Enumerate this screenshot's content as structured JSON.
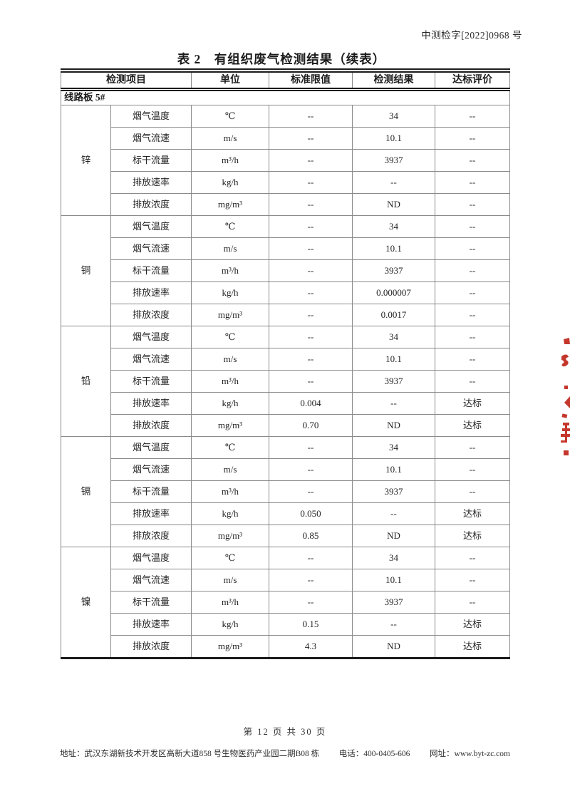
{
  "doc": {
    "number": "中测检字[2022]0968 号",
    "title": "表 2　有组织废气检测结果（续表）",
    "page_indicator": "第 12 页 共 30 页",
    "address": "地址：武汉东湖新技术开发区高新大道858 号生物医药产业园二期B08 栋",
    "phone": "电话：400-0405-606",
    "website": "网址：www.byt-zc.com"
  },
  "table": {
    "headers": [
      "检测项目",
      "单位",
      "标准限值",
      "检测结果",
      "达标评价"
    ],
    "section_label": "线路板 5#",
    "groups": [
      {
        "name": "锌",
        "rows": [
          {
            "item": "烟气温度",
            "unit": "℃",
            "standard_limit": "--",
            "result": "34",
            "evaluation": "--"
          },
          {
            "item": "烟气流速",
            "unit": "m/s",
            "standard_limit": "--",
            "result": "10.1",
            "evaluation": "--"
          },
          {
            "item": "标干流量",
            "unit": "m³/h",
            "standard_limit": "--",
            "result": "3937",
            "evaluation": "--"
          },
          {
            "item": "排放速率",
            "unit": "kg/h",
            "standard_limit": "--",
            "result": "--",
            "evaluation": "--"
          },
          {
            "item": "排放浓度",
            "unit": "mg/m³",
            "standard_limit": "--",
            "result": "ND",
            "evaluation": "--"
          }
        ]
      },
      {
        "name": "铜",
        "rows": [
          {
            "item": "烟气温度",
            "unit": "℃",
            "standard_limit": "--",
            "result": "34",
            "evaluation": "--"
          },
          {
            "item": "烟气流速",
            "unit": "m/s",
            "standard_limit": "--",
            "result": "10.1",
            "evaluation": "--"
          },
          {
            "item": "标干流量",
            "unit": "m³/h",
            "standard_limit": "--",
            "result": "3937",
            "evaluation": "--"
          },
          {
            "item": "排放速率",
            "unit": "kg/h",
            "standard_limit": "--",
            "result": "0.000007",
            "evaluation": "--"
          },
          {
            "item": "排放浓度",
            "unit": "mg/m³",
            "standard_limit": "--",
            "result": "0.0017",
            "evaluation": "--"
          }
        ]
      },
      {
        "name": "铅",
        "rows": [
          {
            "item": "烟气温度",
            "unit": "℃",
            "standard_limit": "--",
            "result": "34",
            "evaluation": "--"
          },
          {
            "item": "烟气流速",
            "unit": "m/s",
            "standard_limit": "--",
            "result": "10.1",
            "evaluation": "--"
          },
          {
            "item": "标干流量",
            "unit": "m³/h",
            "standard_limit": "--",
            "result": "3937",
            "evaluation": "--"
          },
          {
            "item": "排放速率",
            "unit": "kg/h",
            "standard_limit": "0.004",
            "result": "--",
            "evaluation": "达标"
          },
          {
            "item": "排放浓度",
            "unit": "mg/m³",
            "standard_limit": "0.70",
            "result": "ND",
            "evaluation": "达标"
          }
        ]
      },
      {
        "name": "镉",
        "rows": [
          {
            "item": "烟气温度",
            "unit": "℃",
            "standard_limit": "--",
            "result": "34",
            "evaluation": "--"
          },
          {
            "item": "烟气流速",
            "unit": "m/s",
            "standard_limit": "--",
            "result": "10.1",
            "evaluation": "--"
          },
          {
            "item": "标干流量",
            "unit": "m³/h",
            "standard_limit": "--",
            "result": "3937",
            "evaluation": "--"
          },
          {
            "item": "排放速率",
            "unit": "kg/h",
            "standard_limit": "0.050",
            "result": "--",
            "evaluation": "达标"
          },
          {
            "item": "排放浓度",
            "unit": "mg/m³",
            "standard_limit": "0.85",
            "result": "ND",
            "evaluation": "达标"
          }
        ]
      },
      {
        "name": "镍",
        "rows": [
          {
            "item": "烟气温度",
            "unit": "℃",
            "standard_limit": "--",
            "result": "34",
            "evaluation": "--"
          },
          {
            "item": "烟气流速",
            "unit": "m/s",
            "standard_limit": "--",
            "result": "10.1",
            "evaluation": "--"
          },
          {
            "item": "标干流量",
            "unit": "m³/h",
            "standard_limit": "--",
            "result": "3937",
            "evaluation": "--"
          },
          {
            "item": "排放速率",
            "unit": "kg/h",
            "standard_limit": "0.15",
            "result": "--",
            "evaluation": "达标"
          },
          {
            "item": "排放浓度",
            "unit": "mg/m³",
            "standard_limit": "4.3",
            "result": "ND",
            "evaluation": "达标"
          }
        ]
      }
    ]
  },
  "stamp": {
    "color": "#c5372c"
  }
}
